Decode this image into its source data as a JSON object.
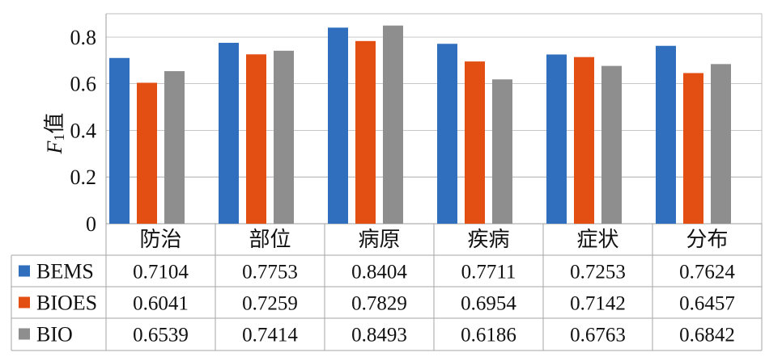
{
  "chart_data": {
    "type": "bar",
    "categories": [
      "防治",
      "部位",
      "病原",
      "疾病",
      "症状",
      "分布"
    ],
    "series": [
      {
        "name": "BEMS",
        "values": [
          0.7104,
          0.7753,
          0.8404,
          0.7711,
          0.7253,
          0.7624
        ],
        "display_values": [
          "0.7104",
          "0.7753",
          "0.8404",
          "0.7711",
          "0.7253",
          "0.7624"
        ],
        "color": "#2f6fbe"
      },
      {
        "name": "BIOES",
        "values": [
          0.6041,
          0.7259,
          0.7829,
          0.6954,
          0.7142,
          0.6457
        ],
        "display_values": [
          "0.6041",
          "0.7259",
          "0.7829",
          "0.6954",
          "0.7142",
          "0.6457"
        ],
        "color": "#e34f13"
      },
      {
        "name": "BIO",
        "values": [
          0.6539,
          0.7414,
          0.8493,
          0.6186,
          0.6763,
          0.6842
        ],
        "display_values": [
          "0.6539",
          "0.7414",
          "0.8493",
          "0.6186",
          "0.6763",
          "0.6842"
        ],
        "color": "#8e8e8e"
      }
    ],
    "ylabel_italic": "F",
    "ylabel_subscript": "1",
    "ylabel_suffix": "值",
    "ylim": [
      0,
      0.9
    ],
    "yticks": [
      "0",
      "0.2",
      "0.4",
      "0.6",
      "0.8"
    ],
    "grid": true,
    "data_table": true
  }
}
